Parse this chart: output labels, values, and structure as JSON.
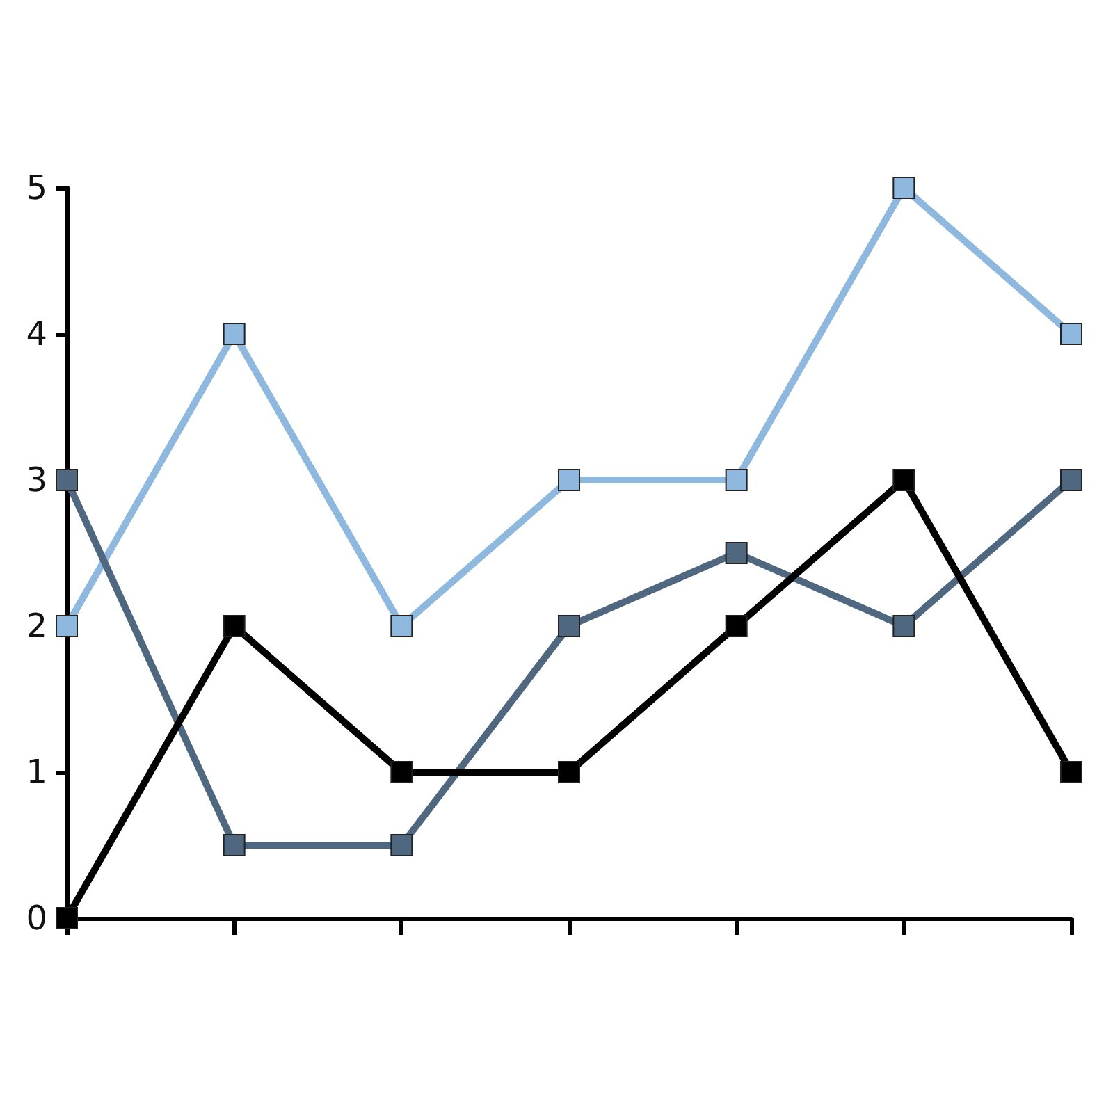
{
  "chart_data": {
    "type": "line",
    "categories": [
      null,
      null,
      null,
      null,
      null,
      null,
      null
    ],
    "series": [
      {
        "color": "#8fb8de",
        "values": [
          2,
          4,
          2,
          3,
          3,
          5,
          4
        ]
      },
      {
        "color": "#4f6880",
        "values": [
          3,
          0.5,
          0.5,
          2,
          2.5,
          2,
          3
        ]
      },
      {
        "color": "#000000",
        "values": [
          0,
          2,
          1,
          1,
          2,
          3,
          1
        ]
      }
    ],
    "ylim": [
      0,
      5
    ],
    "yticks": [
      0,
      1,
      2,
      3,
      4,
      5
    ],
    "marker": "square",
    "line_style": "solid",
    "tick_labels": "y"
  }
}
